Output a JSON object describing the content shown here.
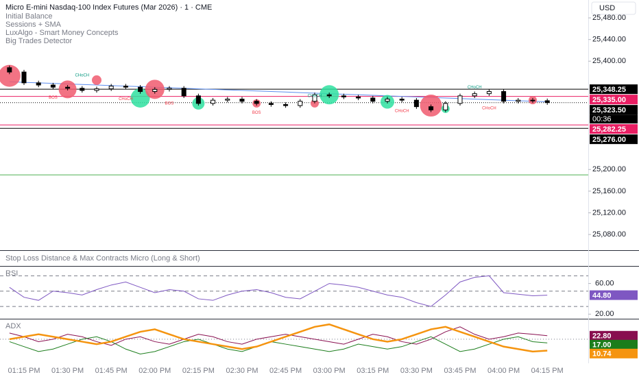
{
  "chart_data": [
    {
      "type": "candlestick",
      "title": "Micro E-mini Nasdaq-100 Index Futures (Mar 2026) · 1 · CME",
      "indicators": [
        "Initial Balance",
        "Sessions + SMA",
        "LuxAlgo - Smart Money Concepts",
        "Big Trades Detector"
      ],
      "currency": "USD",
      "countdown": "00:36",
      "categories": [
        null,
        "01:15 PM",
        null,
        null,
        "01:30 PM",
        null,
        null,
        "01:45 PM",
        null,
        null,
        "02:00 PM",
        null,
        null,
        "02:15 PM",
        null,
        null,
        "02:30 PM",
        null,
        null,
        "02:45 PM",
        null,
        null,
        "03:00 PM",
        null,
        null,
        "03:15 PM",
        null,
        null,
        "03:30 PM",
        null,
        null,
        "03:45 PM",
        null,
        null,
        "04:00 PM",
        null,
        null,
        "04:15 PM"
      ],
      "open": [
        25388,
        25380,
        25360,
        25356,
        25352,
        25350,
        25346,
        25349,
        25354,
        25352,
        25344,
        25348,
        25350,
        25336,
        25322,
        25328,
        25330,
        25326,
        25322,
        25320,
        25318,
        25326,
        25338,
        25336,
        25334,
        25332,
        25326,
        25330,
        25328,
        25316,
        25310,
        25322,
        25336,
        25340,
        25344,
        25326,
        25328,
        25327
      ],
      "high": [
        25392,
        25384,
        25364,
        25360,
        25356,
        25354,
        25353,
        25358,
        25358,
        25356,
        25352,
        25354,
        25354,
        25340,
        25332,
        25334,
        25334,
        25330,
        25326,
        25324,
        25330,
        25342,
        25342,
        25340,
        25338,
        25336,
        25334,
        25334,
        25332,
        25320,
        25326,
        25340,
        25344,
        25348,
        25348,
        25332,
        25332,
        25331
      ],
      "low": [
        25376,
        25356,
        25352,
        25348,
        25346,
        25342,
        25342,
        25345,
        25348,
        25340,
        25340,
        25344,
        25332,
        25318,
        25318,
        25324,
        25322,
        25318,
        25316,
        25314,
        25314,
        25322,
        25332,
        25330,
        25328,
        25322,
        25322,
        25324,
        25312,
        25306,
        25306,
        25318,
        25332,
        25336,
        25322,
        25322,
        25323,
        25319.5
      ],
      "close": [
        25380,
        25360,
        25356,
        25352,
        25350,
        25346,
        25349,
        25354,
        25352,
        25344,
        25348,
        25350,
        25336,
        25322,
        25328,
        25330,
        25326,
        25322,
        25320,
        25318,
        25326,
        25338,
        25336,
        25334,
        25332,
        25326,
        25330,
        25328,
        25316,
        25310,
        25322,
        25336,
        25340,
        25344,
        25326,
        25328,
        25327,
        25323.5
      ],
      "sma": {
        "color": "#5b8def",
        "values": [
          25362,
          25361,
          25360,
          25359,
          25358,
          25357,
          25356,
          25355,
          25354,
          25353,
          25352,
          25351,
          25350,
          25349,
          25348,
          25347,
          25346,
          25345,
          25344,
          25343,
          25342,
          25341,
          25340,
          25339,
          25338,
          25337,
          25336,
          25335,
          25334,
          25333,
          25332,
          25331,
          25330,
          25329,
          25328,
          25327,
          25326,
          25325
        ]
      },
      "up_color": "#ffffff",
      "down_color": "#000000",
      "ylim": [
        25051,
        25513
      ],
      "yticks": [
        {
          "value": 25480,
          "label": "25,480.00"
        },
        {
          "value": 25440,
          "label": "25,440.00"
        },
        {
          "value": 25400,
          "label": "25,400.00"
        },
        {
          "value": 25200,
          "label": "25,200.00"
        },
        {
          "value": 25160,
          "label": "25,160.00"
        },
        {
          "value": 25120,
          "label": "25,120.00"
        },
        {
          "value": 25080,
          "label": "25,080.00"
        }
      ],
      "price_lines": [
        {
          "value": 25348.25,
          "label": "25,348.25",
          "color": "#000000",
          "dash": false
        },
        {
          "value": 25335,
          "label": "25,335.00",
          "color": "#e91e63",
          "dash": false
        },
        {
          "value": 25323.5,
          "label": "25,323.50",
          "color": "#000000",
          "dash": true
        },
        {
          "value": 25282.25,
          "label": "25,282.25",
          "color": "#e91e63",
          "dash": false
        },
        {
          "value": 25276,
          "label": "25,276.00",
          "color": "#000000",
          "dash": false
        }
      ],
      "hlines": [
        {
          "value": 25190,
          "color": "#4caf50"
        }
      ],
      "annotations": [
        {
          "text": "CHoCH",
          "index": 5,
          "price": 25374,
          "color": "#089981"
        },
        {
          "text": "BOS",
          "index": 3,
          "price": 25333,
          "color": "#f23645"
        },
        {
          "text": "CHoCH",
          "index": 8,
          "price": 25330,
          "color": "#f23645"
        },
        {
          "text": "BOS",
          "index": 11,
          "price": 25322,
          "color": "#f23645"
        },
        {
          "text": "BOS",
          "index": 17,
          "price": 25305,
          "color": "#f23645"
        },
        {
          "text": "CHoCH",
          "index": 21,
          "price": 25336,
          "color": "#089981"
        },
        {
          "text": "CHoCH",
          "index": 27,
          "price": 25308,
          "color": "#f23645"
        },
        {
          "text": "CHoCH",
          "index": 32,
          "price": 25352,
          "color": "#089981"
        },
        {
          "text": "CHoCH",
          "index": 33,
          "price": 25313,
          "color": "#f23645"
        }
      ],
      "big_trades": [
        {
          "index": 0,
          "price": 25373,
          "size": 16,
          "color": "#f05a6e"
        },
        {
          "index": 4,
          "price": 25348,
          "size": 13,
          "color": "#f05a6e"
        },
        {
          "index": 6,
          "price": 25365,
          "size": 7,
          "color": "#f05a6e"
        },
        {
          "index": 9,
          "price": 25332,
          "size": 14,
          "color": "#2fe0a0"
        },
        {
          "index": 10,
          "price": 25348,
          "size": 14,
          "color": "#f05a6e"
        },
        {
          "index": 13,
          "price": 25322,
          "size": 9,
          "color": "#2fe0a0"
        },
        {
          "index": 17,
          "price": 25322,
          "size": 6,
          "color": "#f05a6e"
        },
        {
          "index": 21,
          "price": 25322,
          "size": 6,
          "color": "#f05a6e"
        },
        {
          "index": 22,
          "price": 25338,
          "size": 14,
          "color": "#2fe0a0"
        },
        {
          "index": 26,
          "price": 25325,
          "size": 10,
          "color": "#2fe0a0"
        },
        {
          "index": 29,
          "price": 25318,
          "size": 16,
          "color": "#f05a6e"
        },
        {
          "index": 30,
          "price": 25312,
          "size": 6,
          "color": "#2fe0a0"
        },
        {
          "index": 36,
          "price": 25328,
          "size": 6,
          "color": "#f05a6e"
        }
      ]
    },
    {
      "type": "note",
      "title": "Stop Loss Distance & Max Contracts Micro (Long & Short)"
    },
    {
      "type": "line",
      "title": "RSI",
      "series": [
        {
          "color": "#7e57c2",
          "values": [
            55,
            42,
            38,
            50,
            48,
            45,
            52,
            58,
            62,
            55,
            48,
            52,
            50,
            40,
            38,
            45,
            50,
            52,
            48,
            42,
            40,
            50,
            60,
            58,
            55,
            50,
            45,
            42,
            35,
            30,
            45,
            62,
            68,
            70,
            48,
            46,
            44,
            44.8
          ],
          "value_labels": [
            null,
            null,
            null,
            null,
            null,
            null,
            null,
            null,
            null,
            null,
            null,
            null,
            null,
            null,
            null,
            null,
            null,
            null,
            null,
            null,
            null,
            null,
            null,
            null,
            null,
            null,
            null,
            null,
            null,
            null,
            null,
            null,
            null,
            null,
            null,
            null,
            null,
            "44.80"
          ]
        }
      ],
      "bands": [
        70,
        50,
        30
      ],
      "ylim": [
        14,
        82
      ],
      "yticks": [
        {
          "value": 60,
          "label": "60.00"
        },
        {
          "value": 20,
          "label": "20.00"
        }
      ]
    },
    {
      "type": "line",
      "title": "ADX",
      "series": [
        {
          "color": "#880e4f",
          "width": 1,
          "values": [
            25,
            22,
            18,
            20,
            24,
            22,
            18,
            15,
            20,
            22,
            18,
            16,
            20,
            24,
            22,
            18,
            16,
            20,
            22,
            24,
            22,
            20,
            18,
            16,
            20,
            24,
            22,
            18,
            16,
            20,
            26,
            30,
            24,
            20,
            22,
            25,
            24,
            22.8
          ],
          "value_labels": [
            null,
            null,
            null,
            null,
            null,
            null,
            null,
            null,
            null,
            null,
            null,
            null,
            null,
            null,
            null,
            null,
            null,
            null,
            null,
            null,
            null,
            null,
            null,
            null,
            null,
            null,
            null,
            null,
            null,
            null,
            null,
            null,
            null,
            null,
            null,
            null,
            null,
            "22.80"
          ]
        },
        {
          "color": "#1b7d1b",
          "width": 1,
          "values": [
            18,
            14,
            10,
            12,
            16,
            20,
            22,
            18,
            12,
            8,
            10,
            14,
            18,
            20,
            16,
            12,
            10,
            14,
            18,
            16,
            14,
            12,
            10,
            12,
            16,
            14,
            12,
            14,
            18,
            22,
            16,
            10,
            12,
            16,
            20,
            22,
            18,
            17
          ],
          "value_labels": [
            null,
            null,
            null,
            null,
            null,
            null,
            null,
            null,
            null,
            null,
            null,
            null,
            null,
            null,
            null,
            null,
            null,
            null,
            null,
            null,
            null,
            null,
            null,
            null,
            null,
            null,
            null,
            null,
            null,
            null,
            null,
            null,
            null,
            null,
            null,
            null,
            null,
            "17.00"
          ]
        },
        {
          "color": "#f5940f",
          "width": 2.5,
          "values": [
            20,
            22,
            24,
            22,
            20,
            18,
            16,
            18,
            22,
            26,
            28,
            24,
            20,
            18,
            16,
            14,
            12,
            14,
            18,
            22,
            26,
            30,
            32,
            28,
            24,
            20,
            18,
            20,
            24,
            28,
            30,
            26,
            22,
            18,
            14,
            12,
            10,
            10.74
          ],
          "value_labels": [
            null,
            null,
            null,
            null,
            null,
            null,
            null,
            null,
            null,
            null,
            null,
            null,
            null,
            null,
            null,
            null,
            null,
            null,
            null,
            null,
            null,
            null,
            null,
            null,
            null,
            null,
            null,
            null,
            null,
            null,
            null,
            null,
            null,
            null,
            null,
            null,
            null,
            "10.74"
          ]
        }
      ],
      "hline": 20,
      "ylim": [
        0.5,
        36
      ]
    }
  ]
}
